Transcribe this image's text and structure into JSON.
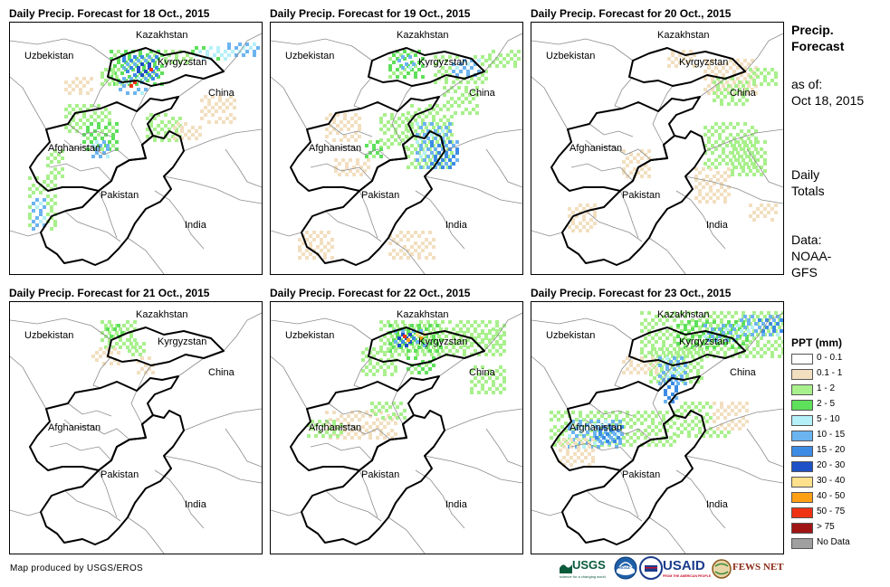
{
  "panels": [
    {
      "title": "Daily Precip. Forecast for 18 Oct., 2015"
    },
    {
      "title": "Daily Precip. Forecast for 19 Oct., 2015"
    },
    {
      "title": "Daily Precip. Forecast for 20 Oct., 2015"
    },
    {
      "title": "Daily Precip. Forecast for 21 Oct., 2015"
    },
    {
      "title": "Daily Precip. Forecast for 22 Oct., 2015"
    },
    {
      "title": "Daily Precip. Forecast for 23 Oct., 2015"
    }
  ],
  "labels": {
    "kazakhstan": "Kazakhstan",
    "uzbekistan": "Uzbekistan",
    "kyrgyzstan": "Kyrgyzstan",
    "china": "China",
    "afghanistan": "Afghanistan",
    "pakistan": "Pakistan",
    "india": "India"
  },
  "side": {
    "heading_line1": "Precip.",
    "heading_line2": "Forecast",
    "asof_line1": "as of:",
    "asof_line2": "Oct 18, 2015",
    "daily_line1": "Daily",
    "daily_line2": "Totals",
    "data_line1": "Data:",
    "data_line2": "NOAA-",
    "data_line3": "GFS"
  },
  "legend": {
    "title": "PPT (mm)",
    "items": [
      {
        "label": "0 - 0.1",
        "color": "#ffffff"
      },
      {
        "label": "0.1 - 1",
        "color": "#f2dfc0"
      },
      {
        "label": "1 - 2",
        "color": "#a8f08c"
      },
      {
        "label": "2 - 5",
        "color": "#5ee05a"
      },
      {
        "label": "5 - 10",
        "color": "#b4f0f8"
      },
      {
        "label": "10 - 15",
        "color": "#6cb4f0"
      },
      {
        "label": "15 - 20",
        "color": "#3c8ce6"
      },
      {
        "label": "20 - 30",
        "color": "#1e50c8"
      },
      {
        "label": "30 - 40",
        "color": "#ffe08c"
      },
      {
        "label": "40 - 50",
        "color": "#ffa014"
      },
      {
        "label": "50 - 75",
        "color": "#f03214"
      },
      {
        "label": "> 75",
        "color": "#a01414"
      },
      {
        "label": "No Data",
        "color": "#a0a0a0"
      }
    ]
  },
  "credit": "Map produced by USGS/EROS",
  "logos": {
    "usgs": "USGS",
    "usgs_tagline": "science for a changing world",
    "noaa": "NOAA",
    "usaid": "USAID",
    "usaid_tagline": "FROM THE AMERICAN PEOPLE",
    "fewsnet": "FEWS NET"
  }
}
